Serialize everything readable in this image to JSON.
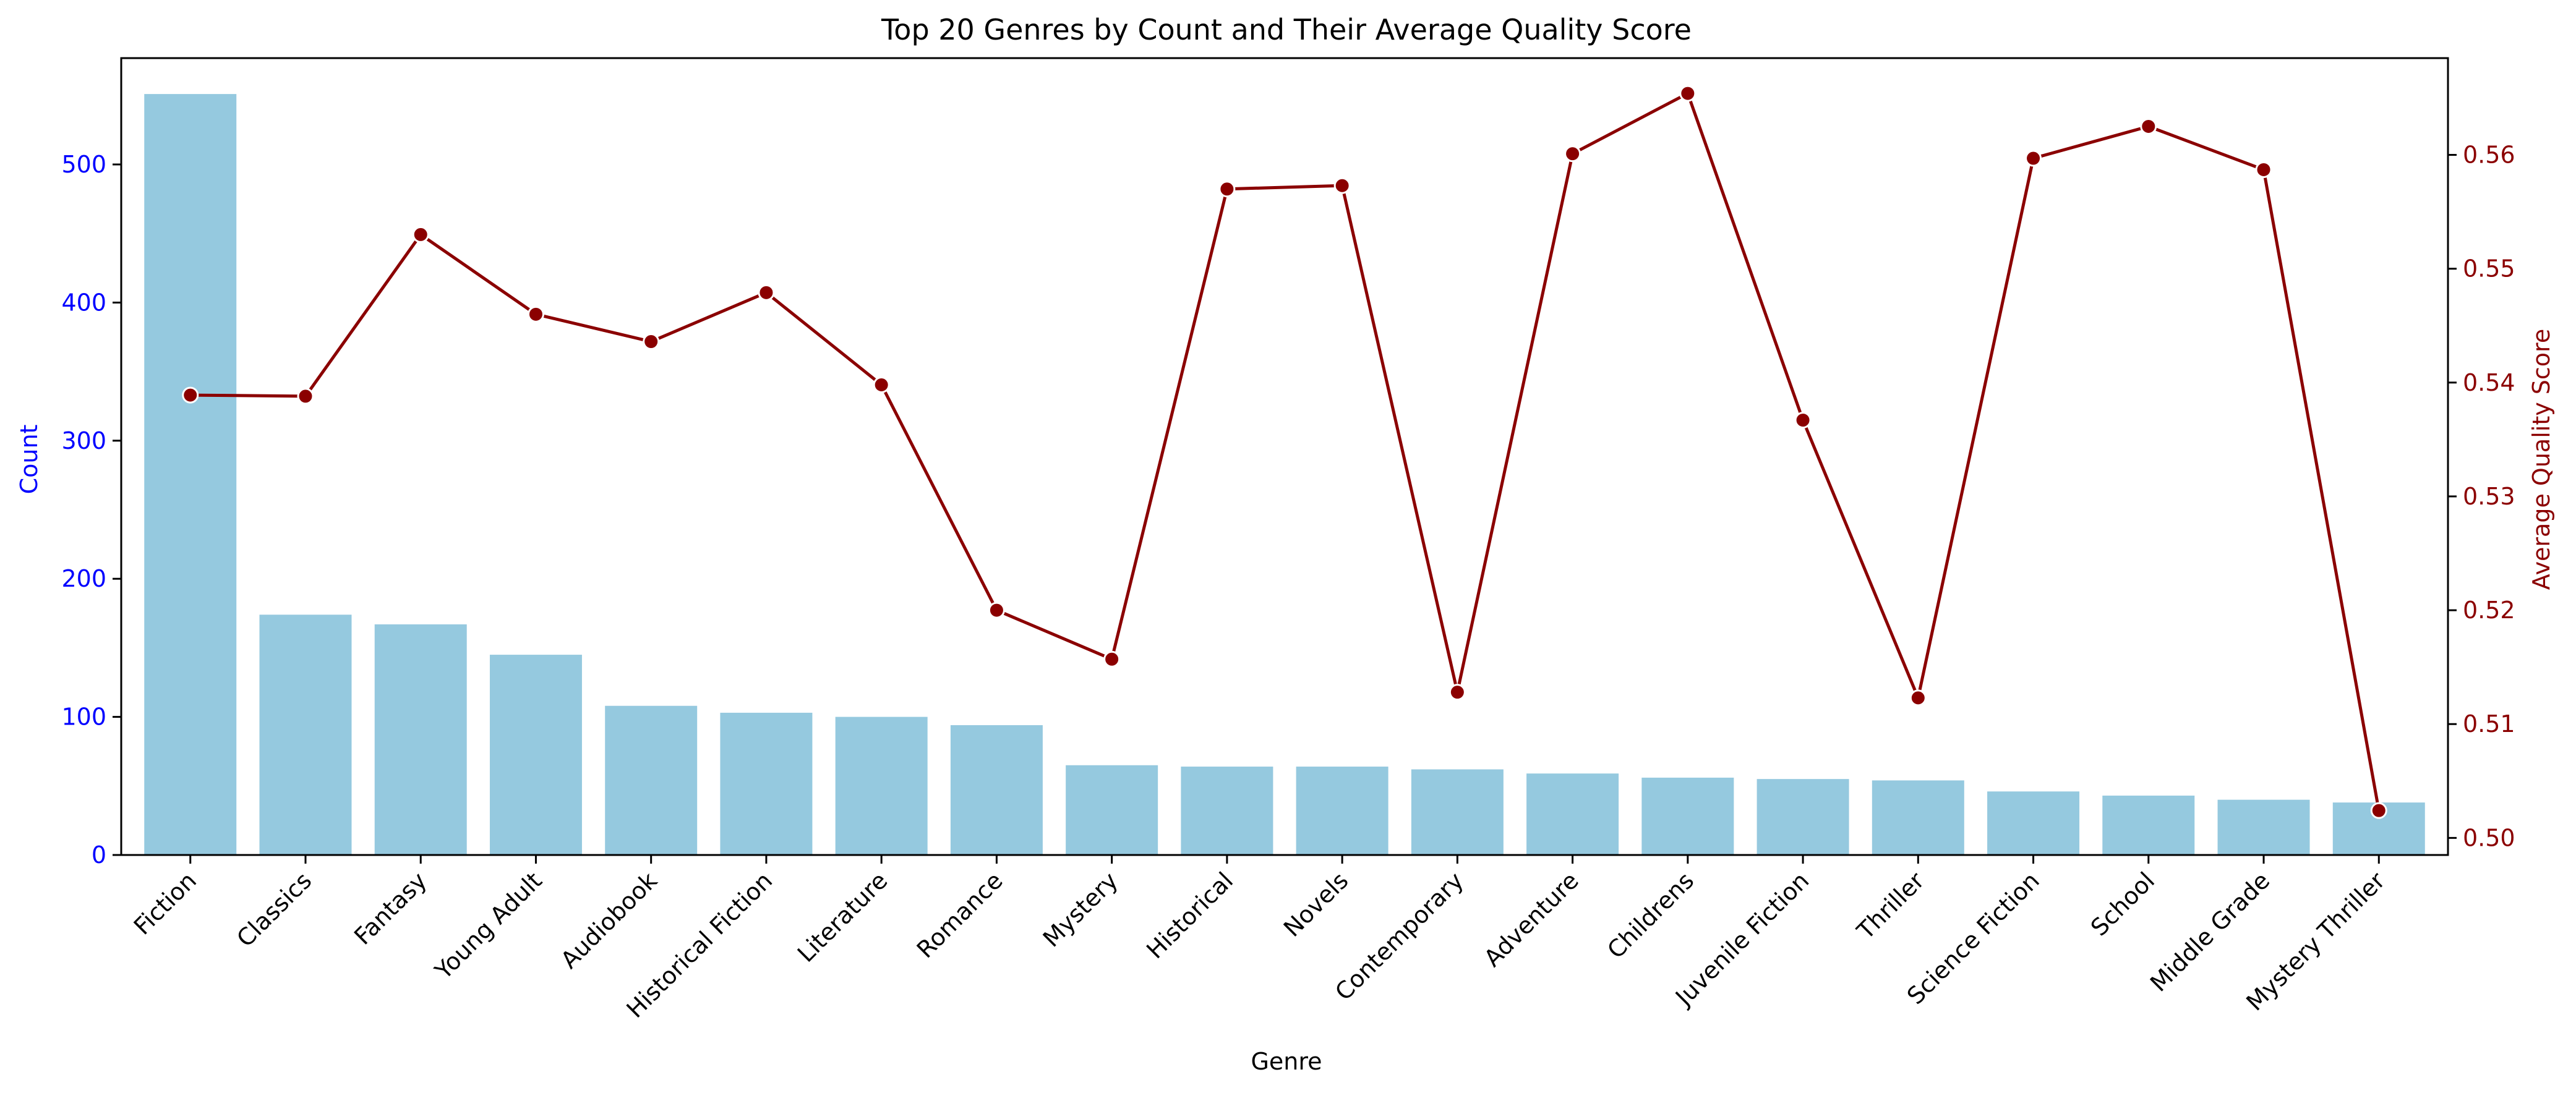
{
  "chart_data": {
    "type": "bar",
    "title": "Top 20 Genres by Count and Their Average Quality Score",
    "xlabel": "Genre",
    "ylabel": "Count",
    "ylabel_right": "Average Quality Score",
    "categories": [
      "Fiction",
      "Classics",
      "Fantasy",
      "Young Adult",
      "Audiobook",
      "Historical Fiction",
      "Literature",
      "Romance",
      "Mystery",
      "Historical",
      "Novels",
      "Contemporary",
      "Adventure",
      "Childrens",
      "Juvenile Fiction",
      "Thriller",
      "Science Fiction",
      "School",
      "Middle Grade",
      "Mystery Thriller"
    ],
    "ylim": [
      0,
      577
    ],
    "ylim_right": [
      0.4985,
      0.5685
    ],
    "yticks": [
      0,
      100,
      200,
      300,
      400,
      500
    ],
    "yticks_right": [
      0.5,
      0.51,
      0.52,
      0.53,
      0.54,
      0.55,
      0.56
    ],
    "yticks_right_labels": [
      "0.50",
      "0.51",
      "0.52",
      "0.53",
      "0.54",
      "0.55",
      "0.56"
    ],
    "grid": false,
    "series": [
      {
        "type": "bar",
        "axis": "left",
        "values": [
          551,
          174,
          167,
          145,
          108,
          103,
          100,
          94,
          65,
          64,
          64,
          62,
          59,
          56,
          55,
          54,
          46,
          43,
          40,
          38
        ]
      },
      {
        "type": "line",
        "axis": "right",
        "values": [
          0.5389,
          0.5388,
          0.553,
          0.546,
          0.5436,
          0.5479,
          0.5398,
          0.52,
          0.5157,
          0.557,
          0.5573,
          0.5128,
          0.5601,
          0.5654,
          0.5367,
          0.5123,
          0.5597,
          0.5625,
          0.5587,
          0.5024
        ]
      }
    ],
    "colors": {
      "bar": "#95c9df",
      "line": "#8b0000",
      "left_axis": "#0000ff",
      "right_axis": "#8b0000",
      "frame": "#000000"
    }
  }
}
